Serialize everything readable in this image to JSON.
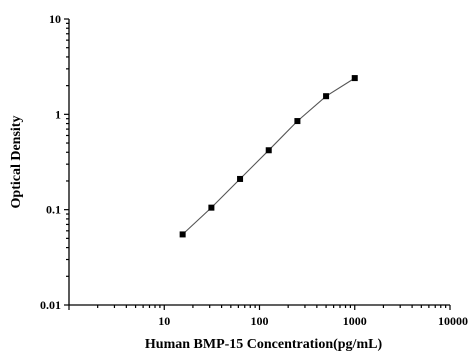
{
  "chart_data": {
    "type": "line",
    "xlabel": "Human BMP-15 Concentration(pg/mL)",
    "ylabel": "Optical Density",
    "x_scale": "log",
    "y_scale": "log",
    "xlim": [
      1,
      10000
    ],
    "ylim": [
      0.01,
      10
    ],
    "x_ticks": [
      10,
      100,
      1000,
      10000
    ],
    "x_tick_labels": [
      "10",
      "100",
      "1000",
      "10000"
    ],
    "y_ticks": [
      0.01,
      0.1,
      1,
      10
    ],
    "y_tick_labels": [
      "0.01",
      "0.1",
      "1",
      "10"
    ],
    "grid": false,
    "series": [
      {
        "x": [
          15.6,
          31.25,
          62.5,
          125,
          250,
          500,
          1000
        ],
        "y": [
          0.055,
          0.105,
          0.21,
          0.42,
          0.85,
          1.55,
          2.4
        ]
      }
    ],
    "colors": {
      "line": "#555555",
      "marker": "#000000",
      "axis": "#000000"
    }
  }
}
